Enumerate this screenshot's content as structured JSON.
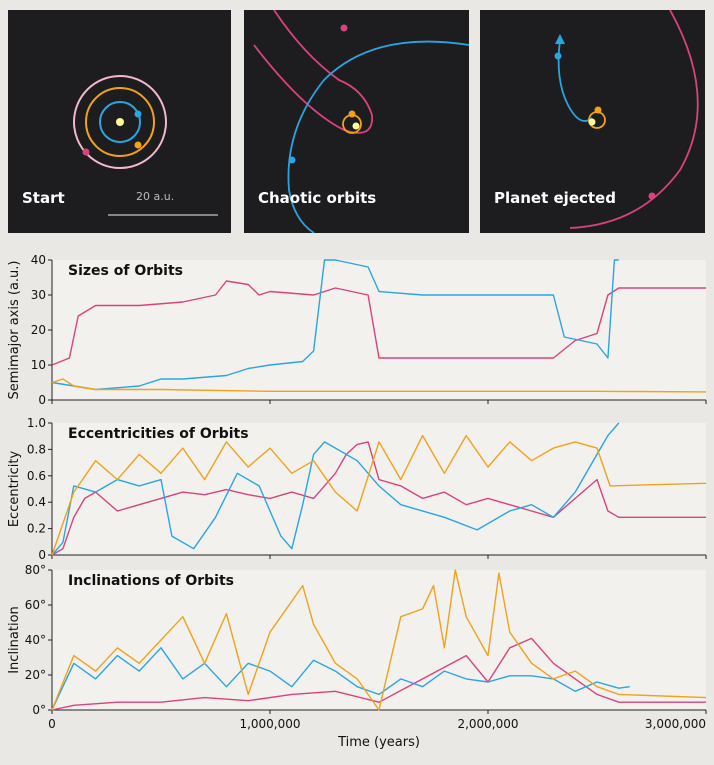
{
  "panels": [
    {
      "label": "Start",
      "scale_label": "20 a.u."
    },
    {
      "label": "Chaotic orbits"
    },
    {
      "label": "Planet ejected"
    }
  ],
  "colors": {
    "pink": "#d8437f",
    "blue": "#2ba5e0",
    "orange": "#f0a21c",
    "panel_bg": "#1d1d1f",
    "star": "#fff799"
  },
  "chart_data": [
    {
      "type": "line",
      "title": "Sizes of Orbits",
      "ylabel": "Semimajor axis (a.u.)",
      "ylim": [
        0,
        40
      ],
      "xlim": [
        0,
        3000000
      ],
      "yticks": [
        "0",
        "10",
        "20",
        "30",
        "40"
      ],
      "series": [
        {
          "color": "#d8437f",
          "points": [
            [
              0,
              10
            ],
            [
              80000,
              12
            ],
            [
              120000,
              24
            ],
            [
              200000,
              27
            ],
            [
              400000,
              27
            ],
            [
              600000,
              28
            ],
            [
              750000,
              30
            ],
            [
              800000,
              34
            ],
            [
              900000,
              33
            ],
            [
              950000,
              30
            ],
            [
              1000000,
              31
            ],
            [
              1200000,
              30
            ],
            [
              1300000,
              32
            ],
            [
              1450000,
              30
            ],
            [
              1500000,
              12
            ],
            [
              1600000,
              12
            ],
            [
              2200000,
              12
            ],
            [
              2300000,
              12
            ],
            [
              2400000,
              17
            ],
            [
              2500000,
              19
            ],
            [
              2550000,
              30
            ],
            [
              2600000,
              32
            ],
            [
              3000000,
              32
            ]
          ]
        },
        {
          "color": "#2ba5e0",
          "points": [
            [
              0,
              5
            ],
            [
              100000,
              4
            ],
            [
              200000,
              3
            ],
            [
              400000,
              4
            ],
            [
              500000,
              6
            ],
            [
              600000,
              6
            ],
            [
              800000,
              7
            ],
            [
              900000,
              9
            ],
            [
              1000000,
              10
            ],
            [
              1150000,
              11
            ],
            [
              1200000,
              14
            ],
            [
              1250000,
              40
            ],
            [
              1300000,
              40
            ],
            [
              1450000,
              38
            ],
            [
              1500000,
              31
            ],
            [
              1700000,
              30
            ],
            [
              2200000,
              30
            ],
            [
              2300000,
              30
            ],
            [
              2350000,
              18
            ],
            [
              2500000,
              16
            ],
            [
              2550000,
              12
            ],
            [
              2580000,
              40
            ],
            [
              2600000,
              40
            ]
          ]
        },
        {
          "color": "#f0a21c",
          "points": [
            [
              0,
              5
            ],
            [
              50000,
              6
            ],
            [
              100000,
              4
            ],
            [
              200000,
              3
            ],
            [
              500000,
              3
            ],
            [
              1000000,
              2.5
            ],
            [
              1500000,
              2.5
            ],
            [
              2000000,
              2.5
            ],
            [
              2500000,
              2.5
            ],
            [
              3000000,
              2.3
            ]
          ]
        }
      ]
    },
    {
      "type": "line",
      "title": "Eccentricities of Orbits",
      "ylabel": "Eccentricity",
      "ylim": [
        0,
        1.05
      ],
      "xlim": [
        0,
        3000000
      ],
      "yticks": [
        "0",
        "0.2",
        "0.4",
        "0.6",
        "0.8",
        "1.0"
      ],
      "series": [
        {
          "color": "#d8437f",
          "points": [
            [
              0,
              0
            ],
            [
              50000,
              0.05
            ],
            [
              100000,
              0.3
            ],
            [
              150000,
              0.45
            ],
            [
              200000,
              0.5
            ],
            [
              300000,
              0.35
            ],
            [
              400000,
              0.4
            ],
            [
              500000,
              0.45
            ],
            [
              600000,
              0.5
            ],
            [
              700000,
              0.48
            ],
            [
              800000,
              0.52
            ],
            [
              900000,
              0.48
            ],
            [
              1000000,
              0.45
            ],
            [
              1100000,
              0.5
            ],
            [
              1200000,
              0.45
            ],
            [
              1300000,
              0.65
            ],
            [
              1350000,
              0.8
            ],
            [
              1400000,
              0.88
            ],
            [
              1450000,
              0.9
            ],
            [
              1500000,
              0.6
            ],
            [
              1600000,
              0.55
            ],
            [
              1700000,
              0.45
            ],
            [
              1800000,
              0.5
            ],
            [
              1900000,
              0.4
            ],
            [
              2000000,
              0.45
            ],
            [
              2100000,
              0.4
            ],
            [
              2200000,
              0.35
            ],
            [
              2300000,
              0.3
            ],
            [
              2400000,
              0.45
            ],
            [
              2500000,
              0.6
            ],
            [
              2550000,
              0.35
            ],
            [
              2600000,
              0.3
            ],
            [
              3000000,
              0.3
            ]
          ]
        },
        {
          "color": "#2ba5e0",
          "points": [
            [
              0,
              0
            ],
            [
              50000,
              0.1
            ],
            [
              100000,
              0.55
            ],
            [
              200000,
              0.5
            ],
            [
              300000,
              0.6
            ],
            [
              400000,
              0.55
            ],
            [
              500000,
              0.6
            ],
            [
              550000,
              0.15
            ],
            [
              650000,
              0.05
            ],
            [
              750000,
              0.3
            ],
            [
              850000,
              0.65
            ],
            [
              950000,
              0.55
            ],
            [
              1050000,
              0.15
            ],
            [
              1100000,
              0.05
            ],
            [
              1150000,
              0.4
            ],
            [
              1200000,
              0.8
            ],
            [
              1250000,
              0.9
            ],
            [
              1300000,
              0.85
            ],
            [
              1400000,
              0.75
            ],
            [
              1500000,
              0.55
            ],
            [
              1600000,
              0.4
            ],
            [
              1800000,
              0.3
            ],
            [
              1950000,
              0.2
            ],
            [
              2100000,
              0.35
            ],
            [
              2200000,
              0.4
            ],
            [
              2300000,
              0.3
            ],
            [
              2400000,
              0.5
            ],
            [
              2500000,
              0.8
            ],
            [
              2550000,
              0.95
            ],
            [
              2600000,
              1.05
            ]
          ]
        },
        {
          "color": "#f0a21c",
          "points": [
            [
              0,
              0
            ],
            [
              100000,
              0.5
            ],
            [
              200000,
              0.75
            ],
            [
              300000,
              0.6
            ],
            [
              400000,
              0.8
            ],
            [
              500000,
              0.65
            ],
            [
              600000,
              0.85
            ],
            [
              700000,
              0.6
            ],
            [
              800000,
              0.9
            ],
            [
              900000,
              0.7
            ],
            [
              1000000,
              0.85
            ],
            [
              1100000,
              0.65
            ],
            [
              1200000,
              0.75
            ],
            [
              1300000,
              0.5
            ],
            [
              1400000,
              0.35
            ],
            [
              1500000,
              0.9
            ],
            [
              1600000,
              0.6
            ],
            [
              1700000,
              0.95
            ],
            [
              1800000,
              0.65
            ],
            [
              1900000,
              0.95
            ],
            [
              2000000,
              0.7
            ],
            [
              2100000,
              0.9
            ],
            [
              2200000,
              0.75
            ],
            [
              2300000,
              0.85
            ],
            [
              2400000,
              0.9
            ],
            [
              2500000,
              0.85
            ],
            [
              2560000,
              0.55
            ],
            [
              3000000,
              0.57
            ]
          ]
        }
      ]
    },
    {
      "type": "line",
      "title": "Inclinations of Orbits",
      "ylabel": "Inclination",
      "ylim": [
        0,
        90
      ],
      "xlim": [
        0,
        3000000
      ],
      "yticks": [
        "0°",
        "20°",
        "40°",
        "60°",
        "80°"
      ],
      "xticks": [
        "0",
        "1,000,000",
        "2,000,000",
        "3,000,000"
      ],
      "xlabel": "Time (years)",
      "series": [
        {
          "color": "#d8437f",
          "points": [
            [
              0,
              0
            ],
            [
              100000,
              3
            ],
            [
              300000,
              5
            ],
            [
              500000,
              5
            ],
            [
              700000,
              8
            ],
            [
              900000,
              6
            ],
            [
              1100000,
              10
            ],
            [
              1300000,
              12
            ],
            [
              1500000,
              5
            ],
            [
              1700000,
              20
            ],
            [
              1900000,
              35
            ],
            [
              2000000,
              18
            ],
            [
              2100000,
              40
            ],
            [
              2200000,
              46
            ],
            [
              2300000,
              30
            ],
            [
              2400000,
              20
            ],
            [
              2500000,
              10
            ],
            [
              2600000,
              5
            ],
            [
              3000000,
              5
            ]
          ]
        },
        {
          "color": "#2ba5e0",
          "points": [
            [
              0,
              0
            ],
            [
              100000,
              30
            ],
            [
              200000,
              20
            ],
            [
              300000,
              35
            ],
            [
              400000,
              25
            ],
            [
              500000,
              40
            ],
            [
              600000,
              20
            ],
            [
              700000,
              30
            ],
            [
              800000,
              15
            ],
            [
              900000,
              30
            ],
            [
              1000000,
              25
            ],
            [
              1100000,
              15
            ],
            [
              1200000,
              32
            ],
            [
              1300000,
              25
            ],
            [
              1400000,
              15
            ],
            [
              1500000,
              10
            ],
            [
              1600000,
              20
            ],
            [
              1700000,
              15
            ],
            [
              1800000,
              25
            ],
            [
              1900000,
              20
            ],
            [
              2000000,
              18
            ],
            [
              2100000,
              22
            ],
            [
              2200000,
              22
            ],
            [
              2300000,
              20
            ],
            [
              2400000,
              12
            ],
            [
              2500000,
              18
            ],
            [
              2600000,
              14
            ],
            [
              2650000,
              15
            ]
          ]
        },
        {
          "color": "#f0a21c",
          "points": [
            [
              0,
              0
            ],
            [
              100000,
              35
            ],
            [
              200000,
              25
            ],
            [
              300000,
              40
            ],
            [
              400000,
              30
            ],
            [
              500000,
              45
            ],
            [
              600000,
              60
            ],
            [
              700000,
              30
            ],
            [
              800000,
              62
            ],
            [
              900000,
              10
            ],
            [
              1000000,
              50
            ],
            [
              1100000,
              70
            ],
            [
              1150000,
              80
            ],
            [
              1200000,
              55
            ],
            [
              1300000,
              30
            ],
            [
              1400000,
              20
            ],
            [
              1500000,
              0
            ],
            [
              1600000,
              60
            ],
            [
              1700000,
              65
            ],
            [
              1750000,
              80
            ],
            [
              1800000,
              40
            ],
            [
              1850000,
              90
            ],
            [
              1900000,
              60
            ],
            [
              2000000,
              35
            ],
            [
              2050000,
              88
            ],
            [
              2100000,
              50
            ],
            [
              2200000,
              30
            ],
            [
              2300000,
              20
            ],
            [
              2400000,
              25
            ],
            [
              2500000,
              15
            ],
            [
              2600000,
              10
            ],
            [
              3000000,
              8
            ]
          ]
        }
      ]
    }
  ]
}
